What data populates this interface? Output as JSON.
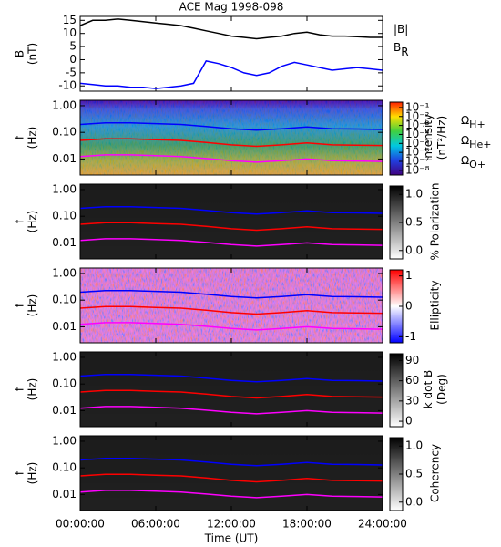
{
  "chart_data": [
    {
      "type": "line",
      "title": "ACE Mag 1998-098",
      "ylabel": [
        "B",
        "(nT)"
      ],
      "x": [
        0,
        1,
        2,
        3,
        4,
        5,
        6,
        7,
        8,
        9,
        10,
        11,
        12,
        13,
        14,
        15,
        16,
        17,
        18,
        19,
        20,
        21,
        22,
        23,
        24
      ],
      "xlim": [
        0,
        24
      ],
      "xticks": [
        0,
        6,
        12,
        18,
        24
      ],
      "ylim": [
        -12,
        16.5
      ],
      "yticks": [
        -10,
        -5,
        0,
        5,
        10,
        15
      ],
      "series": [
        {
          "name": "|B|",
          "color": "#000000",
          "values": [
            13,
            15,
            15,
            15.5,
            15,
            14.5,
            14,
            13.5,
            13,
            12,
            11,
            10,
            9,
            8.5,
            8,
            8.5,
            9,
            10,
            10.5,
            9.5,
            9,
            9,
            8.8,
            8.5,
            8.5
          ]
        },
        {
          "name": "B",
          "name_sub": "R",
          "color": "#0000ff",
          "values": [
            -9,
            -9.5,
            -10,
            -10,
            -10.5,
            -10.5,
            -11,
            -10.5,
            -10,
            -9,
            -0.5,
            -1.5,
            -3,
            -5,
            -6,
            -5,
            -2.5,
            -1,
            -2,
            -3,
            -4,
            -3.5,
            -3,
            -3.5,
            -4
          ]
        }
      ]
    },
    {
      "type": "spectrogram",
      "ylabel": [
        "f",
        "(Hz)"
      ],
      "log_y": true,
      "colormap": "rainbow",
      "x": [
        0,
        2,
        4,
        6,
        8,
        10,
        12,
        14,
        16,
        18,
        20,
        22,
        24
      ],
      "xlim": [
        0,
        24
      ],
      "xticks": [
        0,
        6,
        12,
        18,
        24
      ],
      "ylim": [
        0.0025,
        1.6
      ],
      "yticks": [
        {
          "value": 1,
          "label": "1.00"
        },
        {
          "value": 0.1,
          "label": "0.10"
        },
        {
          "value": 0.01,
          "label": "0.01"
        }
      ],
      "cbar_label": [
        "Intensity",
        "(nT²/Hz)"
      ],
      "cbar_log": true,
      "cbar_lim": [
        3e-09,
        0.4
      ],
      "cbar_ticks": [
        {
          "value": 0.1,
          "label": "10⁻¹"
        },
        {
          "value": 0.01,
          "label": "10⁻²"
        },
        {
          "value": 0.001,
          "label": "10⁻³"
        },
        {
          "value": 0.0001,
          "label": "10⁻⁴"
        },
        {
          "value": 1e-05,
          "label": "10⁻⁵"
        },
        {
          "value": 1e-06,
          "label": "10⁻⁶"
        },
        {
          "value": 1e-07,
          "label": "10⁻⁷"
        },
        {
          "value": 1e-08,
          "label": "10⁻⁸"
        }
      ],
      "legend": true,
      "series": [
        {
          "name": "Ω",
          "name_sub": "H+",
          "color": "#0000ff",
          "values": [
            0.198,
            0.228,
            0.228,
            0.213,
            0.198,
            0.167,
            0.137,
            0.122,
            0.137,
            0.16,
            0.137,
            0.134,
            0.129
          ]
        },
        {
          "name": "Ω",
          "name_sub": "He+",
          "color": "#ff0000",
          "values": [
            0.05,
            0.057,
            0.057,
            0.053,
            0.05,
            0.042,
            0.034,
            0.03,
            0.034,
            0.04,
            0.034,
            0.033,
            0.032
          ]
        },
        {
          "name": "Ω",
          "name_sub": "O+",
          "color": "#ff00ff",
          "values": [
            0.0124,
            0.0143,
            0.0143,
            0.0133,
            0.0124,
            0.0104,
            0.0086,
            0.0076,
            0.0086,
            0.01,
            0.0086,
            0.0084,
            0.0081
          ]
        }
      ]
    },
    {
      "type": "spectrogram",
      "ylabel": [
        "f",
        "(Hz)"
      ],
      "log_y": true,
      "colormap": "gray",
      "x": [
        0,
        2,
        4,
        6,
        8,
        10,
        12,
        14,
        16,
        18,
        20,
        22,
        24
      ],
      "xlim": [
        0,
        24
      ],
      "xticks": [
        0,
        6,
        12,
        18,
        24
      ],
      "ylim": [
        0.0025,
        1.6
      ],
      "yticks": [
        {
          "value": 1,
          "label": "1.00"
        },
        {
          "value": 0.1,
          "label": "0.10"
        },
        {
          "value": 0.01,
          "label": "0.01"
        }
      ],
      "cbar_label": [
        "% Polarization"
      ],
      "cbar_lim": [
        -0.15,
        1.15
      ],
      "cbar_ticks": [
        {
          "value": 1,
          "label": "1.0"
        },
        0.5,
        {
          "value": 0,
          "label": "0.0"
        }
      ],
      "series": [
        {
          "color": "#0000ff",
          "values": [
            0.198,
            0.228,
            0.228,
            0.213,
            0.198,
            0.167,
            0.137,
            0.122,
            0.137,
            0.16,
            0.137,
            0.134,
            0.129
          ]
        },
        {
          "color": "#ff0000",
          "values": [
            0.05,
            0.057,
            0.057,
            0.053,
            0.05,
            0.042,
            0.034,
            0.03,
            0.034,
            0.04,
            0.034,
            0.033,
            0.032
          ]
        },
        {
          "color": "#ff00ff",
          "values": [
            0.0124,
            0.0143,
            0.0143,
            0.0133,
            0.0124,
            0.0104,
            0.0086,
            0.0076,
            0.0086,
            0.01,
            0.0086,
            0.0084,
            0.0081
          ]
        }
      ]
    },
    {
      "type": "spectrogram",
      "ylabel": [
        "f",
        "(Hz)"
      ],
      "log_y": true,
      "colormap": "bwr",
      "x": [
        0,
        2,
        4,
        6,
        8,
        10,
        12,
        14,
        16,
        18,
        20,
        22,
        24
      ],
      "xlim": [
        0,
        24
      ],
      "xticks": [
        0,
        6,
        12,
        18,
        24
      ],
      "ylim": [
        0.0025,
        1.6
      ],
      "yticks": [
        {
          "value": 1,
          "label": "1.00"
        },
        {
          "value": 0.1,
          "label": "0.10"
        },
        {
          "value": 0.01,
          "label": "0.01"
        }
      ],
      "cbar_label": [
        "Ellipticity"
      ],
      "cbar_lim": [
        -1.2,
        1.2
      ],
      "cbar_ticks": [
        1,
        0,
        -1
      ],
      "series": [
        {
          "color": "#0000ff",
          "values": [
            0.198,
            0.228,
            0.228,
            0.213,
            0.198,
            0.167,
            0.137,
            0.122,
            0.137,
            0.16,
            0.137,
            0.134,
            0.129
          ]
        },
        {
          "color": "#ff0000",
          "values": [
            0.05,
            0.057,
            0.057,
            0.053,
            0.05,
            0.042,
            0.034,
            0.03,
            0.034,
            0.04,
            0.034,
            0.033,
            0.032
          ]
        },
        {
          "color": "#ff00ff",
          "values": [
            0.0124,
            0.0143,
            0.0143,
            0.0133,
            0.0124,
            0.0104,
            0.0086,
            0.0076,
            0.0086,
            0.01,
            0.0086,
            0.0084,
            0.0081
          ]
        }
      ]
    },
    {
      "type": "spectrogram",
      "ylabel": [
        "f",
        "(Hz)"
      ],
      "log_y": true,
      "colormap": "gray",
      "x": [
        0,
        2,
        4,
        6,
        8,
        10,
        12,
        14,
        16,
        18,
        20,
        22,
        24
      ],
      "xlim": [
        0,
        24
      ],
      "xticks": [
        0,
        6,
        12,
        18,
        24
      ],
      "ylim": [
        0.0025,
        1.6
      ],
      "yticks": [
        {
          "value": 1,
          "label": "1.00"
        },
        {
          "value": 0.1,
          "label": "0.10"
        },
        {
          "value": 0.01,
          "label": "0.01"
        }
      ],
      "cbar_label": [
        "k dot B",
        "(Deg)"
      ],
      "cbar_lim": [
        -8,
        100
      ],
      "cbar_ticks": [
        90,
        60,
        30,
        0
      ],
      "series": [
        {
          "color": "#0000ff",
          "values": [
            0.198,
            0.228,
            0.228,
            0.213,
            0.198,
            0.167,
            0.137,
            0.122,
            0.137,
            0.16,
            0.137,
            0.134,
            0.129
          ]
        },
        {
          "color": "#ff0000",
          "values": [
            0.05,
            0.057,
            0.057,
            0.053,
            0.05,
            0.042,
            0.034,
            0.03,
            0.034,
            0.04,
            0.034,
            0.033,
            0.032
          ]
        },
        {
          "color": "#ff00ff",
          "values": [
            0.0124,
            0.0143,
            0.0143,
            0.0133,
            0.0124,
            0.0104,
            0.0086,
            0.0076,
            0.0086,
            0.01,
            0.0086,
            0.0084,
            0.0081
          ]
        }
      ]
    },
    {
      "type": "spectrogram",
      "ylabel": [
        "f",
        "(Hz)"
      ],
      "log_y": true,
      "colormap": "gray",
      "x": [
        0,
        2,
        4,
        6,
        8,
        10,
        12,
        14,
        16,
        18,
        20,
        22,
        24
      ],
      "xlim": [
        0,
        24
      ],
      "xticks": [
        {
          "value": 0,
          "label": "00:00:00"
        },
        {
          "value": 6,
          "label": "06:00:00"
        },
        {
          "value": 12,
          "label": "12:00:00"
        },
        {
          "value": 18,
          "label": "18:00:00"
        },
        {
          "value": 24,
          "label": "24:00:00"
        }
      ],
      "xlabel": "Time (UT)",
      "ylim": [
        0.0025,
        1.6
      ],
      "yticks": [
        {
          "value": 1,
          "label": "1.00"
        },
        {
          "value": 0.1,
          "label": "0.10"
        },
        {
          "value": 0.01,
          "label": "0.01"
        }
      ],
      "cbar_label": [
        "Coherency"
      ],
      "cbar_lim": [
        -0.15,
        1.15
      ],
      "cbar_ticks": [
        {
          "value": 1,
          "label": "1.0"
        },
        0.5,
        {
          "value": 0,
          "label": "0.0"
        }
      ],
      "series": [
        {
          "color": "#0000ff",
          "values": [
            0.198,
            0.228,
            0.228,
            0.213,
            0.198,
            0.167,
            0.137,
            0.122,
            0.137,
            0.16,
            0.137,
            0.134,
            0.129
          ]
        },
        {
          "color": "#ff0000",
          "values": [
            0.05,
            0.057,
            0.057,
            0.053,
            0.05,
            0.042,
            0.034,
            0.03,
            0.034,
            0.04,
            0.034,
            0.033,
            0.032
          ]
        },
        {
          "color": "#ff00ff",
          "values": [
            0.0124,
            0.0143,
            0.0143,
            0.0133,
            0.0124,
            0.0104,
            0.0086,
            0.0076,
            0.0086,
            0.01,
            0.0086,
            0.0084,
            0.0081
          ]
        }
      ]
    }
  ]
}
